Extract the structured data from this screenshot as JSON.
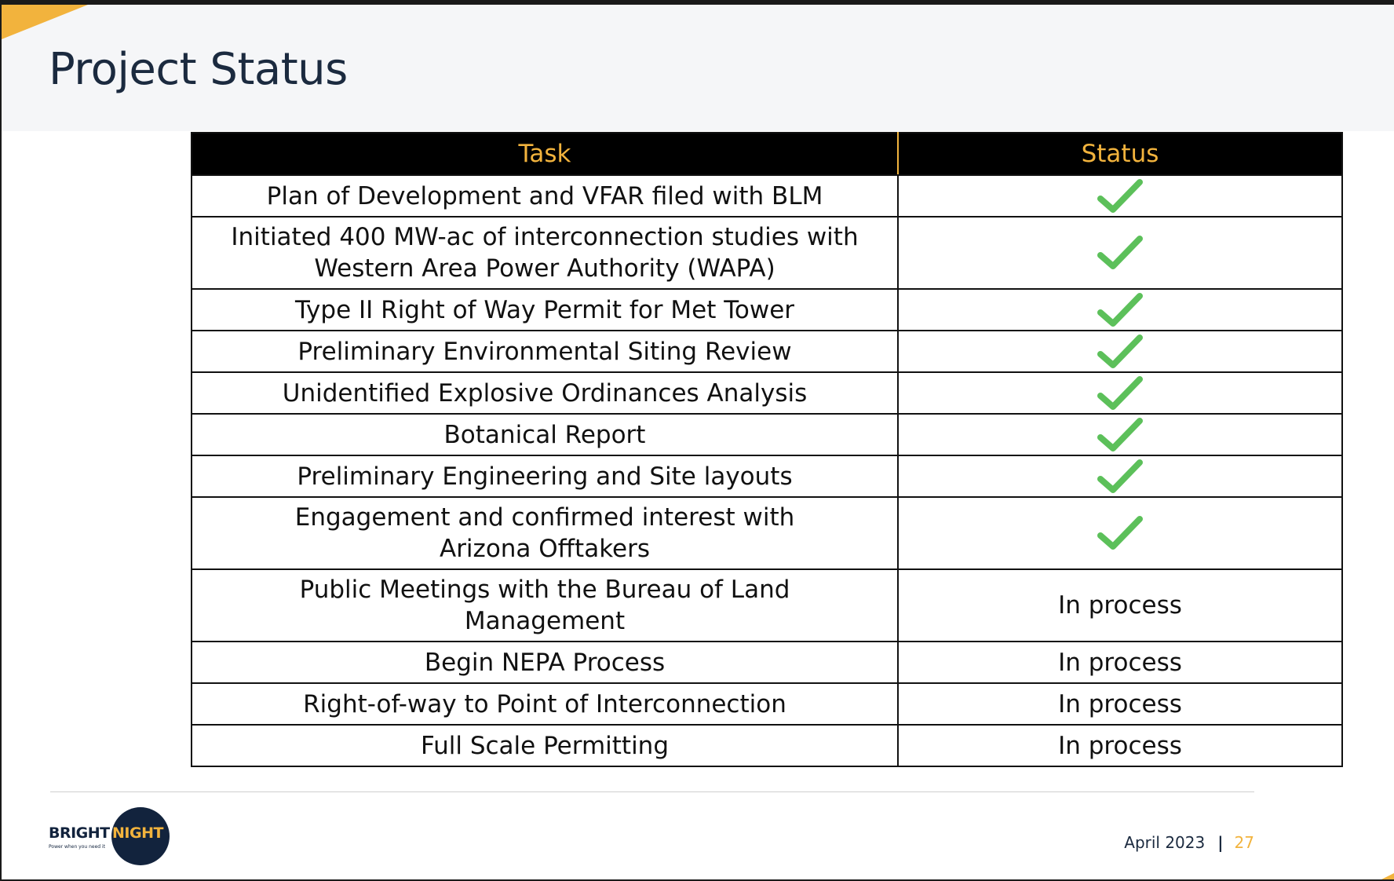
{
  "page": {
    "title": "Project Status"
  },
  "colors": {
    "accent": "#f2b33d",
    "navy": "#12233d",
    "check": "#5cc05a",
    "header_bg": "#000000"
  },
  "table": {
    "headers": [
      "Task",
      "Status"
    ],
    "rows": [
      {
        "task": [
          "Plan of Development and VFAR filed with BLM"
        ],
        "status": "check",
        "status_text": ""
      },
      {
        "task": [
          "Initiated 400 MW-ac of interconnection studies with",
          "Western Area Power Authority (WAPA)"
        ],
        "status": "check",
        "status_text": ""
      },
      {
        "task": [
          "Type II Right of Way Permit for Met Tower"
        ],
        "status": "check",
        "status_text": ""
      },
      {
        "task": [
          "Preliminary Environmental Siting Review"
        ],
        "status": "check",
        "status_text": ""
      },
      {
        "task": [
          "Unidentified Explosive Ordinances Analysis"
        ],
        "status": "check",
        "status_text": ""
      },
      {
        "task": [
          "Botanical Report"
        ],
        "status": "check",
        "status_text": ""
      },
      {
        "task": [
          "Preliminary Engineering and Site layouts"
        ],
        "status": "check",
        "status_text": ""
      },
      {
        "task": [
          "Engagement and confirmed interest with",
          "Arizona Offtakers"
        ],
        "status": "check",
        "status_text": ""
      },
      {
        "task": [
          "Public Meetings with the Bureau of Land",
          "Management"
        ],
        "status": "text",
        "status_text": "In process"
      },
      {
        "task": [
          "Begin NEPA Process"
        ],
        "status": "text",
        "status_text": "In process"
      },
      {
        "task": [
          "Right-of-way to Point of Interconnection"
        ],
        "status": "text",
        "status_text": "In process"
      },
      {
        "task": [
          "Full Scale Permitting"
        ],
        "status": "text",
        "status_text": "In process"
      }
    ]
  },
  "footer": {
    "logo_bright": "BRIGHT",
    "logo_night": "NIGHT",
    "logo_tagline": "Power when you need it",
    "date": "April 2023",
    "separator": "|",
    "page_number": "27"
  }
}
